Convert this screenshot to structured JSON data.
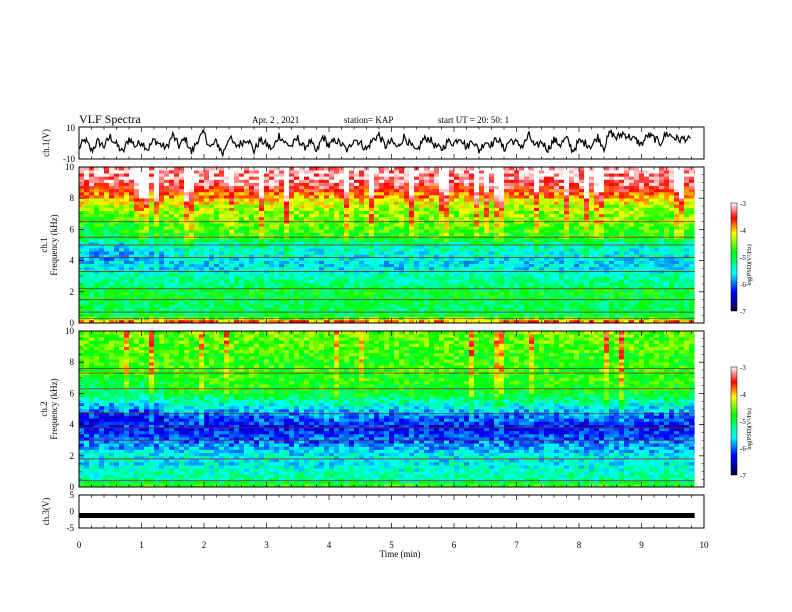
{
  "header": {
    "title": "VLF Spectra",
    "date": "Apr. 2 , 2021",
    "station": "station= KAP",
    "start": "start UT =  20: 50: 1"
  },
  "chart_data": [
    {
      "type": "line",
      "panel": "ch1-waveform",
      "ylabel": "ch.1(V)",
      "ylim": [
        -10,
        10
      ],
      "yticks": [
        "10",
        "-10"
      ],
      "xlim": [
        0,
        9.85
      ],
      "series": [
        {
          "name": "",
          "x": [
            0,
            0.1,
            0.2,
            0.3,
            0.4,
            0.5,
            0.6,
            0.7,
            0.8,
            0.9,
            1.0,
            1.1,
            1.2,
            1.3,
            1.4,
            1.5,
            1.6,
            1.7,
            1.8,
            1.9,
            2.0,
            2.1,
            2.2,
            2.3,
            2.4,
            2.5,
            2.6,
            2.7,
            2.8,
            2.9,
            3.0,
            3.1,
            3.2,
            3.3,
            3.4,
            3.5,
            3.6,
            3.7,
            3.8,
            3.9,
            4.0,
            4.1,
            4.2,
            4.3,
            4.4,
            4.5,
            4.6,
            4.7,
            4.8,
            4.9,
            5.0,
            5.1,
            5.2,
            5.3,
            5.4,
            5.5,
            5.6,
            5.7,
            5.8,
            5.9,
            6.0,
            6.1,
            6.2,
            6.3,
            6.4,
            6.5,
            6.6,
            6.7,
            6.8,
            6.9,
            7.0,
            7.1,
            7.2,
            7.3,
            7.4,
            7.5,
            7.6,
            7.7,
            7.8,
            7.9,
            8.0,
            8.1,
            8.2,
            8.3,
            8.4,
            8.5,
            8.6,
            8.7,
            8.8,
            8.9,
            9.0,
            9.1,
            9.2,
            9.3,
            9.4,
            9.5,
            9.6,
            9.7,
            9.8
          ],
          "values": [
            -3,
            2,
            -5,
            1,
            -2,
            4,
            -1,
            -6,
            3,
            -2,
            1,
            -4,
            2,
            -1,
            -3,
            5,
            -2,
            3,
            -6,
            2,
            6,
            -3,
            1,
            -7,
            4,
            -2,
            0,
            3,
            -5,
            2,
            -1,
            -4,
            5,
            0,
            -2,
            3,
            -3,
            1,
            -6,
            4,
            -2,
            2,
            -1,
            -5,
            3,
            0,
            -4,
            2,
            5,
            -2,
            1,
            -3,
            4,
            -1,
            -6,
            2,
            3,
            -2,
            -4,
            1,
            0,
            4,
            -3,
            2,
            -5,
            1,
            -1,
            3,
            -4,
            2,
            0,
            -2,
            5,
            -3,
            1,
            -4,
            2,
            -1,
            3,
            -5,
            1,
            0,
            -2,
            4,
            -3,
            7,
            3,
            6,
            4,
            2,
            -1,
            5,
            3,
            0,
            6,
            4,
            2,
            3,
            1
          ]
        }
      ]
    },
    {
      "type": "heatmap",
      "panel": "ch1-spectrogram",
      "ylabel": "ch.1\nFrequency (kHz)",
      "ylim": [
        0,
        10
      ],
      "xlim": [
        0,
        9.85
      ],
      "yticks": [
        "0",
        "2",
        "4",
        "6",
        "8",
        "10"
      ],
      "colorbar": {
        "label": "log(PSD)(V²/Hz)",
        "ticks": [
          "-3",
          "-4",
          "-5",
          "-6",
          "-7"
        ],
        "range": [
          -7,
          -3
        ]
      },
      "frequency_profile_kHz": [
        0,
        0.5,
        1,
        1.5,
        2,
        2.5,
        3,
        3.5,
        4,
        4.5,
        5,
        5.5,
        6,
        6.5,
        7,
        7.5,
        8,
        8.5,
        9,
        9.5,
        10
      ],
      "frequency_profile_logpsd": [
        -3.6,
        -5.0,
        -5.1,
        -5.0,
        -4.9,
        -5.2,
        -5.3,
        -5.6,
        -5.7,
        -5.6,
        -5.5,
        -4.9,
        -4.8,
        -4.6,
        -4.5,
        -4.3,
        -4.0,
        -3.6,
        -3.3,
        -3.2,
        -3.1
      ],
      "horizontal_lines_kHz": [
        0.3,
        0.7,
        1.5,
        2.2,
        3.3,
        4.2,
        5.0,
        5.5,
        6.5
      ]
    },
    {
      "type": "heatmap",
      "panel": "ch2-spectrogram",
      "ylabel": "ch.2\nFrequency (kHz)",
      "ylim": [
        0,
        10
      ],
      "xlim": [
        0,
        9.85
      ],
      "yticks": [
        "0",
        "2",
        "4",
        "6",
        "8",
        "10"
      ],
      "colorbar": {
        "label": "log(PSD)(V²/Hz)",
        "ticks": [
          "-3",
          "-4",
          "-5",
          "-6",
          "-7"
        ],
        "range": [
          -7,
          -3
        ]
      },
      "frequency_profile_kHz": [
        0,
        0.5,
        1,
        1.5,
        2,
        2.5,
        3,
        3.5,
        4,
        4.5,
        5,
        5.5,
        6,
        6.5,
        7,
        7.5,
        8,
        8.5,
        9,
        9.5,
        10
      ],
      "frequency_profile_logpsd": [
        -4.6,
        -5.3,
        -5.4,
        -5.6,
        -5.5,
        -5.8,
        -6.0,
        -6.2,
        -6.3,
        -6.1,
        -5.8,
        -5.4,
        -5.0,
        -4.9,
        -4.8,
        -4.7,
        -4.7,
        -4.7,
        -4.6,
        -4.6,
        -4.5
      ],
      "horizontal_lines_kHz": [
        0.4,
        1.8,
        3.0,
        3.8,
        4.7,
        6.3,
        7.3,
        7.6
      ]
    },
    {
      "type": "line",
      "panel": "ch3-waveform",
      "ylabel": "ch.3(V)",
      "ylim": [
        -5,
        5
      ],
      "yticks": [
        "5",
        "0",
        "-5"
      ],
      "xlim": [
        0,
        9.85
      ],
      "series": [
        {
          "name": "",
          "x": [
            0,
            9.85
          ],
          "values": [
            -1.2,
            -1.2
          ]
        }
      ]
    }
  ],
  "xaxis": {
    "label": "Time (min)",
    "ticks": [
      "0",
      "1",
      "2",
      "3",
      "4",
      "5",
      "6",
      "7",
      "8",
      "9",
      "10"
    ],
    "range": [
      0,
      10
    ]
  }
}
